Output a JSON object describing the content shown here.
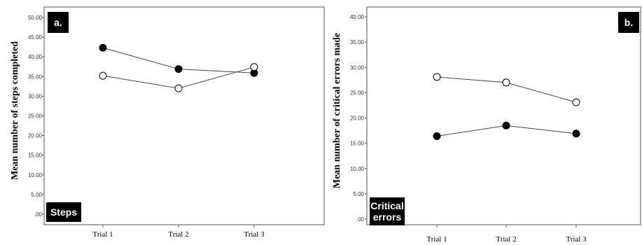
{
  "chart_data": [
    {
      "type": "line",
      "panel_label": "a.",
      "badge": [
        "Steps"
      ],
      "ylabel": "Mean number of steps completed",
      "ylim": [
        0,
        50
      ],
      "yticks": [
        ".00",
        "5.00",
        "10.00",
        "15.00",
        "20.00",
        "25.00",
        "30.00",
        "35.00",
        "40.00",
        "45.00",
        "50.00"
      ],
      "categories": [
        "Trial 1",
        "Trial 2",
        "Trial 3"
      ],
      "series": [
        {
          "marker": "filled",
          "values": [
            42.3,
            36.9,
            35.9
          ]
        },
        {
          "marker": "open",
          "values": [
            35.2,
            32.0,
            37.4
          ]
        }
      ]
    },
    {
      "type": "line",
      "panel_label": "b.",
      "badge": [
        "Critical",
        "errors"
      ],
      "ylabel": "Mean number of critical errors made",
      "ylim": [
        0,
        40
      ],
      "yticks": [
        ".00",
        "5.00",
        "10.00",
        "15.00",
        "20.00",
        "25.00",
        "30.00",
        "35.00",
        "40.00"
      ],
      "categories": [
        "Trial 1",
        "Trial 2",
        "Trial 3"
      ],
      "series": [
        {
          "marker": "filled",
          "values": [
            16.4,
            18.5,
            16.9
          ]
        },
        {
          "marker": "open",
          "values": [
            28.1,
            27.0,
            23.1
          ]
        }
      ]
    }
  ]
}
